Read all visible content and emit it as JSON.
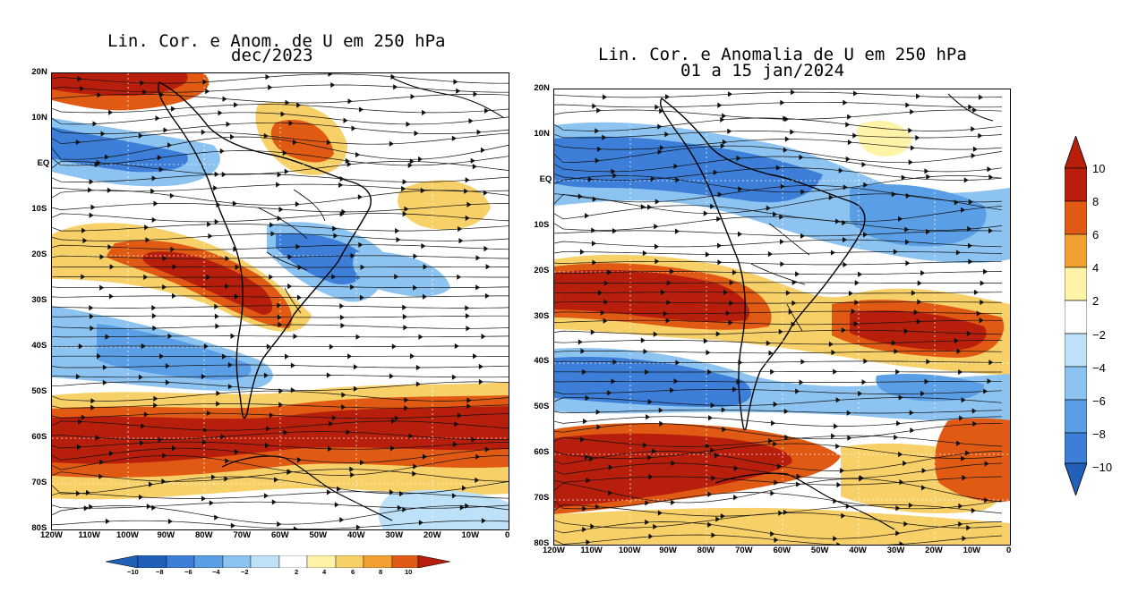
{
  "left_panel": {
    "title_line1": "Lin. Cor. e Anom. de U em 250 hPa",
    "title_line2": "dec/2023",
    "lat_labels": [
      "20N",
      "10N",
      "EQ",
      "10S",
      "20S",
      "30S",
      "40S",
      "50S",
      "60S",
      "70S",
      "80S"
    ],
    "lon_labels": [
      "120W",
      "110W",
      "100W",
      "90W",
      "80W",
      "70W",
      "60W",
      "50W",
      "40W",
      "30W",
      "20W",
      "10W",
      "0"
    ]
  },
  "right_panel": {
    "title_line1": "Lin. Cor. e Anomalia de U em 250 hPa",
    "title_line2": "01 a 15 jan/2024",
    "lat_labels": [
      "20N",
      "10N",
      "EQ",
      "10S",
      "20S",
      "30S",
      "40S",
      "50S",
      "60S",
      "70S",
      "80S"
    ],
    "lon_labels": [
      "120W",
      "110W",
      "100W",
      "90W",
      "80W",
      "70W",
      "60W",
      "50W",
      "40W",
      "30W",
      "20W",
      "10W",
      "0"
    ]
  },
  "vertical_colorbar": {
    "ticks": [
      "10",
      "8",
      "6",
      "4",
      "2",
      "−2",
      "−4",
      "−6",
      "−8",
      "−10"
    ]
  },
  "horizontal_colorbar": {
    "ticks": [
      "−10",
      "−8",
      "−6",
      "−4",
      "−2",
      "2",
      "4",
      "6",
      "8",
      "10"
    ]
  },
  "palette": [
    "#2060b8",
    "#3c7ed8",
    "#5a9ee6",
    "#8cc3f0",
    "#bde1f8",
    "#ffffff",
    "#fff3a8",
    "#f8d068",
    "#f2a032",
    "#e05a14",
    "#b81e0c"
  ]
}
